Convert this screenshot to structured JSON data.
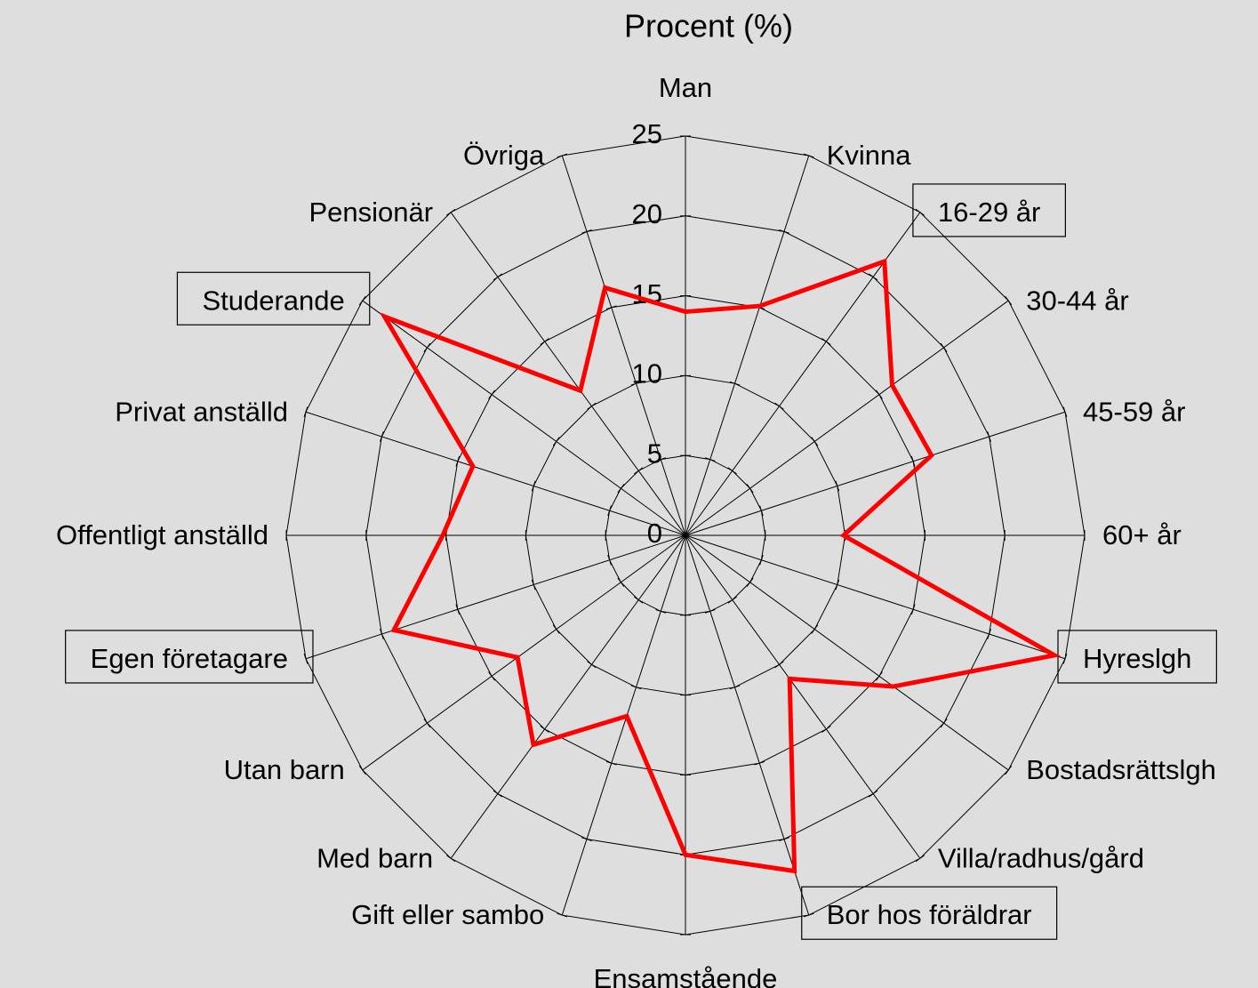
{
  "chart_data": {
    "type": "radar",
    "title": "Procent (%)",
    "categories": [
      "Man",
      "Kvinna",
      "16-29 år",
      "30-44 år",
      "45-59 år",
      "60+ år",
      "Hyreslgh",
      "Bostadsrättslgh",
      "Villa/radhus/gård",
      "Bor hos föräldrar",
      "Ensamstående",
      "Gift eller sambo",
      "Med barn",
      "Utan barn",
      "Egen företagare",
      "Offentligt anställd",
      "Privat anställd",
      "Studerande",
      "Pensionär",
      "Övriga"
    ],
    "values": [
      14.0,
      15.1,
      21.2,
      16.0,
      16.2,
      9.9,
      24.3,
      16.1,
      11.1,
      22.1,
      20.0,
      11.9,
      16.2,
      13.0,
      19.2,
      15.2,
      14.0,
      23.3,
      11.2,
      16.3
    ],
    "color": "#ff0000",
    "ylim": [
      0,
      25
    ],
    "yticks": [
      0,
      5,
      10,
      15,
      20,
      25
    ],
    "grid": true,
    "boxed_categories": [
      2,
      6,
      9,
      14,
      17
    ]
  }
}
